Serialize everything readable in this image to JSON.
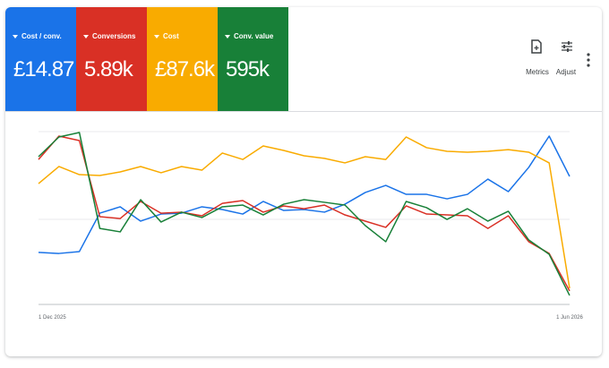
{
  "chart_data": {
    "type": "line",
    "categories": [
      "1 Dec 2025",
      null,
      null,
      null,
      null,
      null,
      null,
      null,
      null,
      null,
      null,
      null,
      null,
      null,
      null,
      null,
      null,
      null,
      null,
      null,
      null,
      null,
      null,
      null,
      null,
      null,
      "1 Jun 2026"
    ],
    "ylim": [
      0,
      100
    ],
    "series": [
      {
        "name": "Cost / conv.",
        "color": "#1a73e8",
        "values": [
          30.1,
          29.5,
          30.6,
          52.8,
          56.5,
          48.2,
          52.3,
          52.8,
          56.5,
          54.9,
          52.3,
          59.6,
          54.4,
          54.9,
          53.4,
          58.0,
          64.8,
          68.9,
          63.7,
          63.7,
          61.1,
          63.7,
          72.5,
          65.3,
          79.3,
          97.4,
          74.1
        ]
      },
      {
        "name": "Conversions",
        "color": "#d93025",
        "values": [
          83.9,
          97.4,
          94.8,
          50.8,
          49.7,
          59.6,
          52.8,
          53.4,
          51.3,
          58.5,
          60.1,
          53.4,
          57.0,
          55.4,
          57.5,
          51.8,
          48.2,
          44.6,
          57.0,
          52.3,
          51.8,
          51.3,
          44.0,
          51.3,
          36.3,
          29.5,
          7.8
        ]
      },
      {
        "name": "Cost",
        "color": "#f9ab00",
        "values": [
          69.9,
          79.8,
          75.1,
          74.6,
          76.7,
          79.8,
          76.2,
          79.8,
          77.7,
          87.6,
          83.9,
          91.7,
          89.1,
          86.0,
          84.5,
          81.9,
          85.5,
          83.9,
          96.9,
          90.7,
          88.6,
          88.1,
          88.6,
          89.6,
          88.1,
          81.9,
          9.3
        ]
      },
      {
        "name": "Conv. value",
        "color": "#188038",
        "values": [
          85.5,
          96.9,
          99.5,
          44.0,
          42.0,
          60.6,
          47.7,
          53.4,
          50.3,
          56.5,
          57.5,
          51.8,
          58.0,
          60.6,
          59.1,
          57.5,
          45.6,
          36.3,
          59.6,
          56.0,
          49.2,
          55.4,
          48.2,
          53.9,
          37.3,
          29.0,
          5.2
        ]
      }
    ]
  },
  "scorecards": [
    "£14.87",
    "5.89k",
    "£87.6k",
    "595k"
  ],
  "toolbar": {
    "metrics": "Metrics",
    "adjust": "Adjust"
  }
}
